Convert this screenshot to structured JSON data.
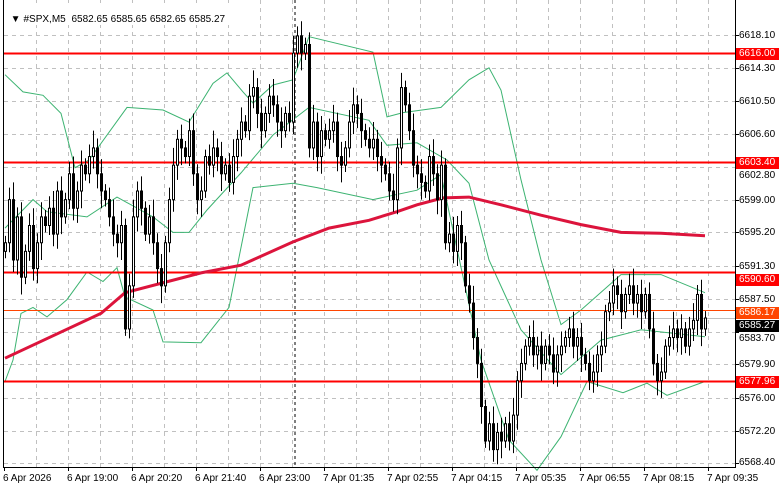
{
  "header": {
    "menu_icon": "triangle-down-icon",
    "symbol": "#SPX,M5",
    "open": "6582.65",
    "high": "6585.65",
    "low": "6582.65",
    "close": "6585.27"
  },
  "colors": {
    "level_line": "#ff0000",
    "bid_line": "#ff4500",
    "ma_line": "#dc143c",
    "bands": "#3cb371",
    "grid": "#c0c0c0",
    "candle_bull": "#ffffff",
    "candle_bear": "#000000"
  },
  "price_axis": [
    "6618.10",
    "6614.30",
    "6610.50",
    "6606.60",
    "6602.80",
    "6599.00",
    "6595.20",
    "6591.30",
    "6587.50",
    "6583.70",
    "6579.90",
    "6576.00",
    "6572.20",
    "6568.40"
  ],
  "time_axis": [
    "6 Apr 2026",
    "6 Apr 19:00",
    "6 Apr 20:20",
    "6 Apr 21:40",
    "6 Apr 23:00",
    "7 Apr 01:35",
    "7 Apr 02:55",
    "7 Apr 04:15",
    "7 Apr 05:35",
    "7 Apr 06:55",
    "7 Apr 08:15",
    "7 Apr 09:35"
  ],
  "levels": [
    {
      "label": "6616.00",
      "value": 6616.0,
      "color": "#ff0000"
    },
    {
      "label": "6603.40",
      "value": 6603.4,
      "color": "#ff0000"
    },
    {
      "label": "6590.60",
      "value": 6590.6,
      "color": "#ff0000"
    },
    {
      "label": "6586.17",
      "value": 6586.17,
      "color": "#ff4500"
    },
    {
      "label": "6577.96",
      "value": 6577.96,
      "color": "#ff0000"
    }
  ],
  "current_price": {
    "label": "6585.27",
    "value": 6585.27
  },
  "chart_data": {
    "type": "candlestick",
    "timeframe": "M5",
    "ylim": [
      6567.5,
      6620.5
    ],
    "grid": true,
    "close": [
      6594,
      6599,
      6592,
      6597,
      6590,
      6593,
      6596,
      6591,
      6594,
      6597,
      6596,
      6598,
      6595,
      6600,
      6597,
      6599,
      6602,
      6598,
      6600,
      6603,
      6602,
      6604,
      6605,
      6602,
      6600,
      6599,
      6597,
      6595,
      6594,
      6596,
      6584,
      6589,
      6597,
      6600,
      6598,
      6595,
      6597,
      6594,
      6591,
      6589,
      6594,
      6599,
      6603,
      6606,
      6605,
      6604,
      6607,
      6602,
      6599,
      6600,
      6604,
      6603,
      6605,
      6604,
      6602,
      6603,
      6601,
      6604,
      6606,
      6608,
      6607,
      6611,
      6612,
      6609,
      6607,
      6609,
      6611,
      6610,
      6608,
      6607,
      6609,
      6608,
      6616,
      6618,
      6616,
      6617,
      6605,
      6608,
      6604,
      6607,
      6606,
      6607,
      6608,
      6604,
      6603,
      6605,
      6608,
      6610,
      6609,
      6607,
      6606,
      6605,
      6606,
      6604,
      6603,
      6602,
      6600,
      6599,
      6605,
      6612,
      6610,
      6607,
      6603,
      6602,
      6601,
      6600,
      6604,
      6602,
      6599,
      6603,
      6594,
      6595,
      6593,
      6596,
      6594,
      6589,
      6587,
      6583,
      6580,
      6575,
      6571,
      6573,
      6570,
      6572,
      6571,
      6573,
      6571,
      6574,
      6578,
      6580,
      6582,
      6583,
      6581,
      6582,
      6580,
      6582,
      6581,
      6579,
      6581,
      6582,
      6583,
      6584,
      6582,
      6583,
      6581,
      6580,
      6578,
      6579,
      6581,
      6582,
      6586,
      6587,
      6589,
      6588,
      6586,
      6588,
      6589,
      6587,
      6588,
      6586,
      6588,
      6584,
      6580,
      6578,
      6579,
      6582,
      6583,
      6584,
      6583,
      6584,
      6582,
      6584,
      6585,
      6588,
      6584,
      6585.27
    ],
    "moving_average": [
      [
        0,
        6580.6
      ],
      [
        24,
        6585.8
      ],
      [
        30,
        6588.2
      ],
      [
        49,
        6590.5
      ],
      [
        59,
        6591.4
      ],
      [
        72,
        6594.1
      ],
      [
        81,
        6595.7
      ],
      [
        91,
        6596.6
      ],
      [
        98,
        6597.6
      ],
      [
        103,
        6598.4
      ],
      [
        109.5,
        6599.2
      ],
      [
        116,
        6599.3
      ],
      [
        124,
        6598.4
      ],
      [
        134,
        6597.2
      ],
      [
        144,
        6596.1
      ],
      [
        154,
        6595.2
      ],
      [
        164,
        6595.1
      ],
      [
        175,
        6594.8
      ]
    ],
    "bollinger_upper": [
      [
        0,
        6613.5
      ],
      [
        4.5,
        6611.5
      ],
      [
        9.5,
        6611.1
      ],
      [
        14,
        6609.0
      ],
      [
        17.5,
        6602.7
      ],
      [
        21,
        6603.6
      ],
      [
        30.5,
        6609.7
      ],
      [
        39.5,
        6609.4
      ],
      [
        46,
        6608.0
      ],
      [
        52,
        6612.5
      ],
      [
        55.5,
        6613.7
      ],
      [
        59.5,
        6611.5
      ],
      [
        62,
        6610.2
      ],
      [
        67,
        6612.3
      ],
      [
        72,
        6612.9
      ],
      [
        76,
        6617.9
      ],
      [
        92,
        6616.1
      ],
      [
        95.5,
        6608.6
      ],
      [
        99.5,
        6609.1
      ],
      [
        109,
        6609.7
      ],
      [
        116,
        6612.9
      ],
      [
        121,
        6614.3
      ],
      [
        124,
        6611.7
      ],
      [
        129,
        6601.3
      ],
      [
        134,
        6592.0
      ],
      [
        139,
        6584.5
      ],
      [
        144,
        6586.2
      ],
      [
        154,
        6590.3
      ],
      [
        164,
        6590.3
      ],
      [
        175,
        6588.2
      ]
    ],
    "bollinger_middle": [
      [
        0,
        6595.7
      ],
      [
        7,
        6599.0
      ],
      [
        10.5,
        6597.6
      ],
      [
        20.5,
        6597.0
      ],
      [
        28,
        6599.3
      ],
      [
        37,
        6597.0
      ],
      [
        42,
        6595.2
      ],
      [
        46,
        6595.2
      ],
      [
        50.5,
        6597.8
      ],
      [
        59,
        6602.1
      ],
      [
        67,
        6606.5
      ],
      [
        76,
        6609.7
      ],
      [
        91,
        6608.2
      ],
      [
        95.5,
        6605.3
      ],
      [
        103,
        6605.6
      ],
      [
        110.5,
        6603.6
      ],
      [
        116,
        6600.9
      ],
      [
        121,
        6592.0
      ],
      [
        129,
        6583.9
      ],
      [
        139,
        6578.7
      ],
      [
        149,
        6582.7
      ],
      [
        159,
        6583.9
      ],
      [
        175,
        6583.1
      ]
    ],
    "bollinger_lower": [
      [
        0,
        6577.9
      ],
      [
        2,
        6580.4
      ],
      [
        4,
        6585.8
      ],
      [
        7,
        6586.5
      ],
      [
        10.5,
        6585.4
      ],
      [
        15.5,
        6587.4
      ],
      [
        20.5,
        6590.6
      ],
      [
        24.5,
        6589.5
      ],
      [
        28,
        6591.1
      ],
      [
        30,
        6587.7
      ],
      [
        37,
        6586.2
      ],
      [
        39.5,
        6582.5
      ],
      [
        49,
        6582.4
      ],
      [
        56,
        6586.5
      ],
      [
        62,
        6600.4
      ],
      [
        72,
        6600.9
      ],
      [
        78,
        6600.4
      ],
      [
        92,
        6599.0
      ],
      [
        103,
        6600.1
      ],
      [
        109,
        6601.9
      ],
      [
        119,
        6580.4
      ],
      [
        126,
        6571.1
      ],
      [
        133,
        6567.6
      ],
      [
        139,
        6571.5
      ],
      [
        145.5,
        6577.9
      ],
      [
        154.5,
        6576.6
      ],
      [
        160.5,
        6577.7
      ],
      [
        165.5,
        6576.3
      ],
      [
        175,
        6577.9
      ]
    ]
  }
}
